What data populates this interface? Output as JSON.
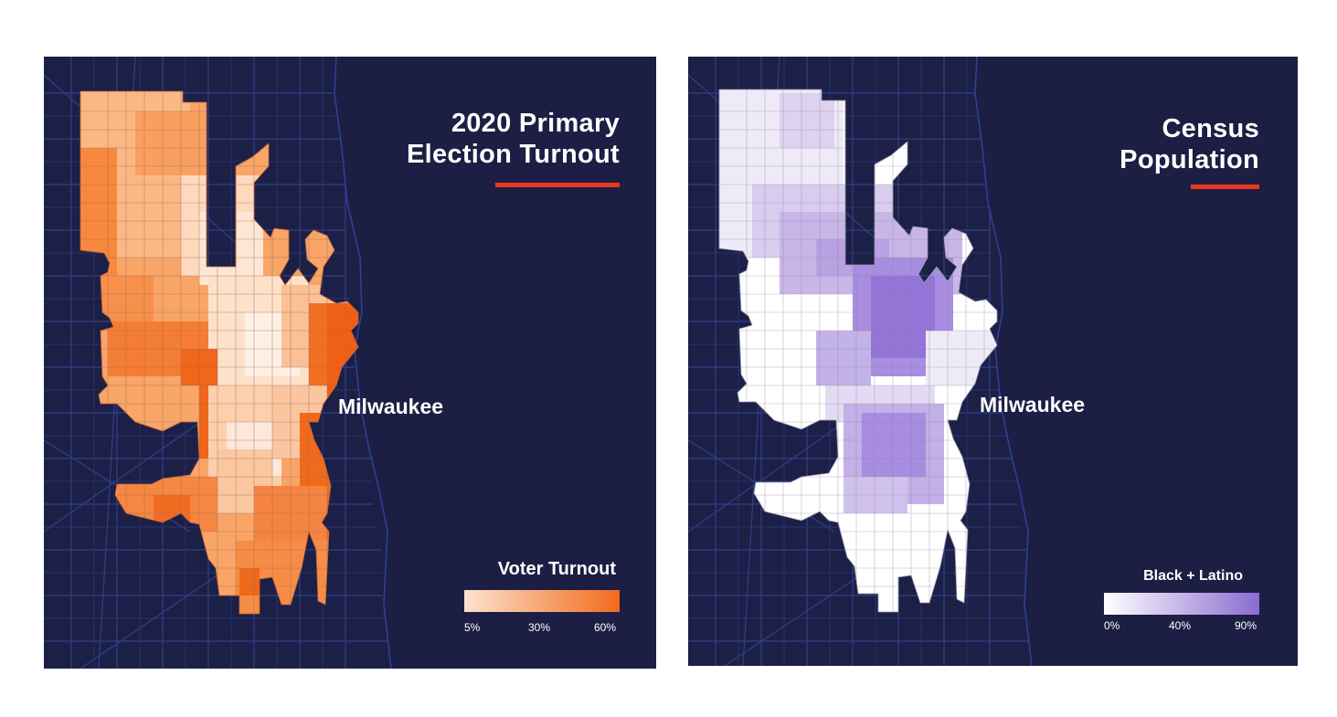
{
  "panels": [
    {
      "title_line1": "2020 Primary",
      "title_line2": "Election Turnout",
      "city_label": "Milwaukee",
      "legend": {
        "title": "Voter Turnout",
        "ticks": [
          "5%",
          "30%",
          "60%"
        ],
        "color_low": "#fde3cf",
        "color_high": "#f26a1b"
      }
    },
    {
      "title_line1": "Census",
      "title_line2": "Population",
      "city_label": "Milwaukee",
      "legend": {
        "title": "Black + Latino",
        "ticks": [
          "0%",
          "40%",
          "90%"
        ],
        "color_low": "#ffffff",
        "color_high": "#8b6bd1"
      }
    }
  ],
  "colors": {
    "background": "#1c2046",
    "lake": "#1c1e44",
    "roads": "#3b4fa6",
    "accent": "#e8391e",
    "tract_border": "#7a6a80"
  }
}
